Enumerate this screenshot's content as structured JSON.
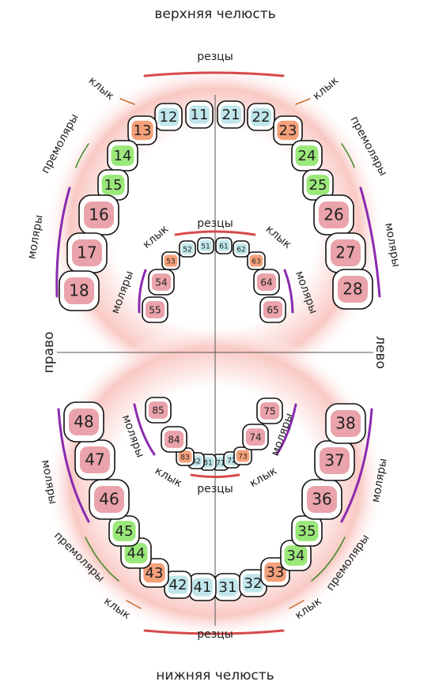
{
  "header": {
    "upper_jaw": "верхняя челюсть",
    "lower_jaw": "нижняя челюсть"
  },
  "sides": {
    "right": "право",
    "left": "лево"
  },
  "teeth": {
    "upper_right": [
      "11",
      "12",
      "13",
      "14",
      "15",
      "16",
      "17",
      "18"
    ],
    "upper_left": [
      "21",
      "22",
      "23",
      "24",
      "25",
      "26",
      "27",
      "28"
    ],
    "lower_left": [
      "31",
      "32",
      "33",
      "34",
      "35",
      "36",
      "37",
      "38"
    ],
    "lower_right": [
      "41",
      "42",
      "43",
      "44",
      "45",
      "46",
      "47",
      "48"
    ],
    "child_upper_right": [
      "51",
      "52",
      "53",
      "54",
      "55"
    ],
    "child_upper_left": [
      "61",
      "62",
      "63",
      "64",
      "65"
    ],
    "child_lower_left": [
      "71",
      "72",
      "73",
      "74",
      "75"
    ],
    "child_lower_right": [
      "81",
      "82",
      "83",
      "84",
      "85"
    ]
  },
  "annotations": [
    "резцы",
    "клык",
    "клык",
    "премоляры",
    "премоляры",
    "моляры",
    "моляры",
    "резцы",
    "клык",
    "клык",
    "моляры",
    "моляры",
    "моляры",
    "моляры",
    "клык",
    "клык",
    "резцы",
    "моляры",
    "моляры",
    "премоляры",
    "премоляры",
    "клык",
    "клык",
    "резцы"
  ]
}
